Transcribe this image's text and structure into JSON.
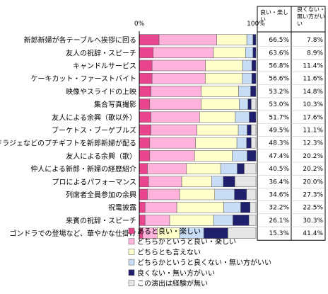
{
  "chart_data": {
    "type": "bar",
    "stacked": true,
    "orientation": "horizontal",
    "axis": {
      "start_label": "0%",
      "end_label": "100%",
      "range": [
        0,
        100
      ]
    },
    "table_headers": [
      "良い・楽しい",
      "良くない・無い方がいい"
    ],
    "categories": [
      "新郎新婦が各テーブルへ挨拶に回る",
      "友人の祝辞・スピーチ",
      "キャンドルサービス",
      "ケーキカット・ファーストバイト",
      "映像やスライドの上映",
      "集合写真撮影",
      "友人による余興（歌以外）",
      "ブーケトス・ブーゲブルズ",
      "ドラジェなどのプチギフトを新郎新婦が配る",
      "友人による余興（歌）",
      "仲人による新郎・新婦の経歴紹介",
      "プロによるパフォーマンス",
      "列席者全員参加の余興",
      "祝電披露",
      "来賓の祝辞・スピーチ",
      "ゴンドラでの登場など、華やかな仕掛け"
    ],
    "good_labels": [
      "66.5%",
      "63.6%",
      "56.8%",
      "56.6%",
      "53.2%",
      "53.0%",
      "51.7%",
      "49.5%",
      "48.3%",
      "47.4%",
      "40.5%",
      "36.4%",
      "34.6%",
      "32.2%",
      "26.1%",
      "15.3%"
    ],
    "bad_labels": [
      "7.8%",
      "8.9%",
      "11.4%",
      "11.6%",
      "14.8%",
      "10.3%",
      "17.6%",
      "11.1%",
      "12.3%",
      "20.2%",
      "20.2%",
      "20.0%",
      "27.3%",
      "22.5%",
      "30.3%",
      "41.4%"
    ],
    "series": [
      {
        "name": "あると良い・楽しい",
        "color": "#e8458e",
        "values": [
          17,
          12,
          11,
          11,
          10,
          9,
          10,
          10,
          9,
          9,
          7,
          8,
          7,
          5,
          5,
          3
        ]
      },
      {
        "name": "どちらかというと良い・楽しい",
        "color": "#ffb3dc",
        "values": [
          49.5,
          51.6,
          45.8,
          45.6,
          43.2,
          44,
          41.7,
          39.5,
          39.3,
          38.4,
          33.5,
          28.4,
          27.6,
          27.2,
          21.1,
          12.3
        ]
      },
      {
        "name": "どちらとも言えない",
        "color": "#ffffcc",
        "values": [
          25.7,
          27.5,
          31.8,
          31.8,
          32,
          32.7,
          30.7,
          35.4,
          35.4,
          32.4,
          29.3,
          25.6,
          30.1,
          40.3,
          37.6,
          19.3
        ]
      },
      {
        "name": "どちらかというと良くない・無い方がいい",
        "color": "#c6ddf5",
        "values": [
          5.3,
          6.4,
          7.9,
          8.1,
          10.3,
          7.5,
          11.9,
          7.6,
          8.3,
          12.7,
          14.2,
          10,
          16.9,
          14.5,
          16.6,
          20.7
        ]
      },
      {
        "name": "良くない・無い方がいい",
        "color": "#1f1f6e",
        "values": [
          2.5,
          2.5,
          3.5,
          3.5,
          4.5,
          2.8,
          5.7,
          3.5,
          4,
          7.5,
          6,
          10,
          10.4,
          8,
          13.7,
          20.7
        ]
      },
      {
        "name": "この演出は経験が無い",
        "color": "#e6e6e6",
        "values": [
          0,
          0,
          0,
          0,
          0,
          4,
          0,
          4,
          4,
          0,
          10,
          18,
          8,
          5,
          6,
          24
        ]
      }
    ]
  }
}
